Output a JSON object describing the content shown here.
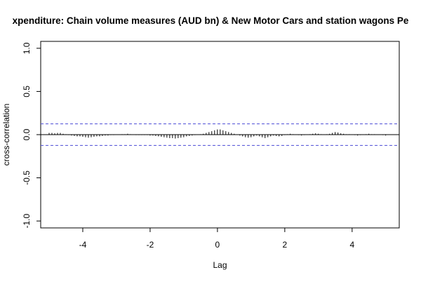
{
  "chart_data": {
    "type": "bar",
    "subtype": "cross-correlation",
    "title": "xpenditure: Chain volume measures (AUD bn) & New Motor Cars and station wagons Pe",
    "xlabel": "Lag",
    "ylabel": "cross-correlation",
    "xlim": [
      -5.25,
      5.4
    ],
    "ylim": [
      -1.08,
      1.08
    ],
    "x_ticks": [
      -4,
      -2,
      0,
      2,
      4
    ],
    "x_tick_labels": [
      "-4",
      "-2",
      "0",
      "2",
      "4"
    ],
    "y_ticks": [
      -1.0,
      -0.5,
      0.0,
      0.5,
      1.0
    ],
    "y_tick_labels": [
      "-1.0",
      "-0.5",
      "0.0",
      "0.5",
      "1.0"
    ],
    "confidence_bounds": [
      0.125,
      -0.125
    ],
    "grid": false,
    "legend": "none",
    "colors": {
      "bars": "#000000",
      "bounds": "#4b4bd6",
      "zero_line": "#000000"
    },
    "lag_step": 0.0833,
    "lag_start": -5.0,
    "values": [
      0.02,
      0.02,
      0.015,
      0.02,
      0.02,
      0.01,
      0.005,
      -0.005,
      -0.01,
      -0.015,
      -0.02,
      -0.02,
      -0.025,
      -0.03,
      -0.035,
      -0.03,
      -0.025,
      -0.02,
      -0.02,
      -0.015,
      -0.01,
      -0.01,
      -0.005,
      -0.005,
      0,
      0,
      0.005,
      0.005,
      0.01,
      0.005,
      0,
      -0.005,
      -0.005,
      -0.005,
      -0.005,
      -0.005,
      -0.01,
      -0.01,
      -0.015,
      -0.02,
      -0.025,
      -0.03,
      -0.035,
      -0.04,
      -0.04,
      -0.045,
      -0.04,
      -0.035,
      -0.03,
      -0.02,
      -0.015,
      -0.01,
      -0.005,
      0,
      0.005,
      0.01,
      0.02,
      0.03,
      0.04,
      0.05,
      0.06,
      0.06,
      0.05,
      0.04,
      0.03,
      0.02,
      0.01,
      0,
      -0.01,
      -0.02,
      -0.03,
      -0.035,
      -0.03,
      -0.02,
      -0.01,
      -0.02,
      -0.03,
      -0.04,
      -0.03,
      -0.02,
      -0.01,
      -0.015,
      -0.02,
      -0.015,
      -0.005,
      0.005,
      0.01,
      0.005,
      0,
      -0.005,
      -0.01,
      -0.005,
      0,
      0.005,
      0.01,
      0.015,
      0.01,
      0.005,
      0,
      0.005,
      0.01,
      0.02,
      0.03,
      0.025,
      0.015,
      0.01,
      0.005,
      0.005,
      0,
      -0.005,
      -0.01,
      -0.005,
      0,
      0.005,
      0.01,
      0.005,
      0.005,
      0,
      0,
      -0.005,
      -0.01
    ]
  }
}
